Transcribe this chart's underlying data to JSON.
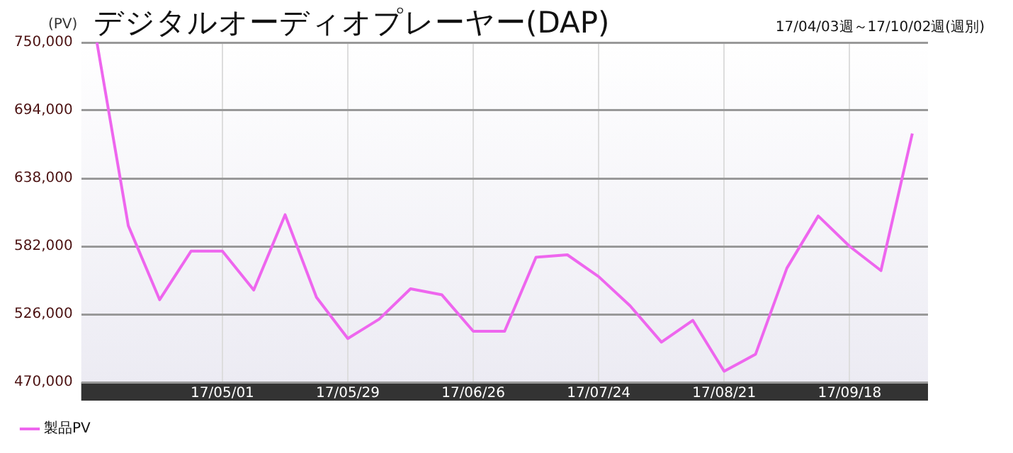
{
  "chart_data": {
    "type": "line",
    "title": "デジタルオーディオプレーヤー(DAP)",
    "subtitle": "17/04/03週～17/10/02週(週別)",
    "ylabel": "(PV)",
    "categories": [
      null,
      null,
      null,
      null,
      "17/05/01",
      null,
      null,
      null,
      "17/05/29",
      null,
      null,
      null,
      "17/06/26",
      null,
      null,
      null,
      "17/07/24",
      null,
      null,
      null,
      "17/08/21",
      null,
      null,
      null,
      "17/09/18",
      null,
      null
    ],
    "series": [
      {
        "name": "製品PV",
        "color": "#ee66ee",
        "values": [
          750000,
          599000,
          538000,
          578000,
          578000,
          546000,
          608000,
          540000,
          506000,
          522000,
          547000,
          542000,
          512000,
          512000,
          573000,
          575000,
          557000,
          533000,
          503000,
          521000,
          479000,
          493000,
          564000,
          607000,
          582000,
          562000,
          675000
        ]
      }
    ],
    "ylim": [
      470000,
      750000
    ],
    "yticks": [
      {
        "value": 470000,
        "label": "470,000"
      },
      {
        "value": 526000,
        "label": "526,000"
      },
      {
        "value": 582000,
        "label": "582,000"
      },
      {
        "value": 638000,
        "label": "638,000"
      },
      {
        "value": 694000,
        "label": "694,000"
      },
      {
        "value": 750000,
        "label": "750,000"
      }
    ],
    "grid": true,
    "legend": "bottom",
    "marker": "none",
    "line_style": "solid"
  }
}
